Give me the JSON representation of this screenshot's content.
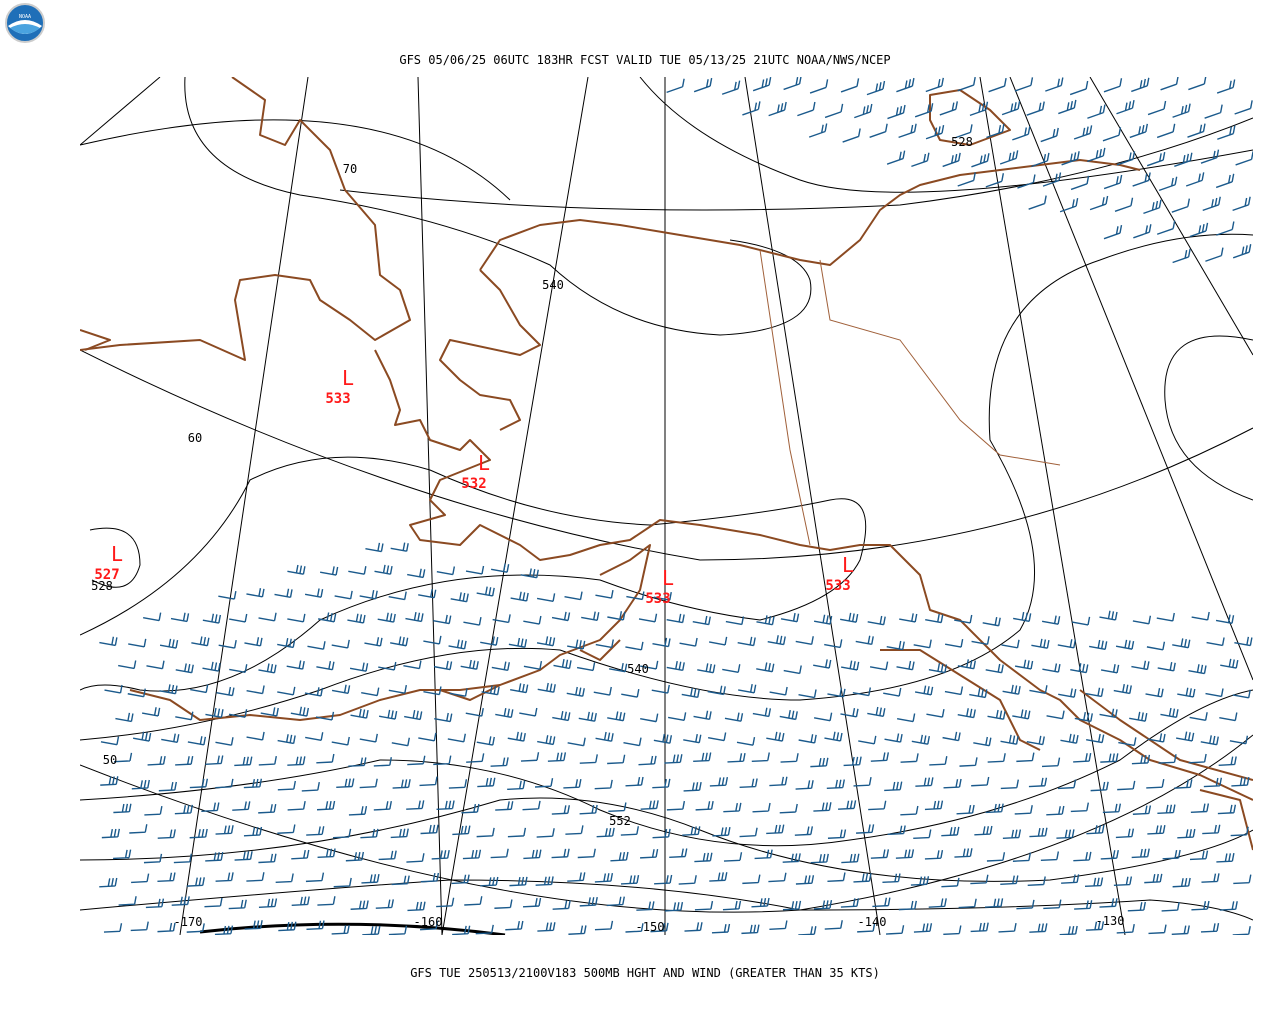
{
  "header": {
    "title": "GFS 05/06/25 06UTC 183HR FCST VALID TUE 05/13/25 21UTC NOAA/NWS/NCEP"
  },
  "footer": {
    "caption": "GFS TUE 250513/2100V183 500MB HGHT AND WIND (GREATER THAN 35 KTS)"
  },
  "lows": [
    {
      "symbol": "L",
      "value": "533"
    },
    {
      "symbol": "L",
      "value": "532"
    },
    {
      "symbol": "L",
      "value": "527"
    },
    {
      "symbol": "L",
      "value": "533"
    },
    {
      "symbol": "L",
      "value": "533"
    }
  ],
  "contour_labels": [
    "540",
    "528",
    "528",
    "540",
    "552"
  ],
  "latitude_labels": [
    "70",
    "60",
    "50"
  ],
  "longitude_labels": [
    "-170",
    "-160",
    "-150",
    "-140",
    "-130"
  ]
}
